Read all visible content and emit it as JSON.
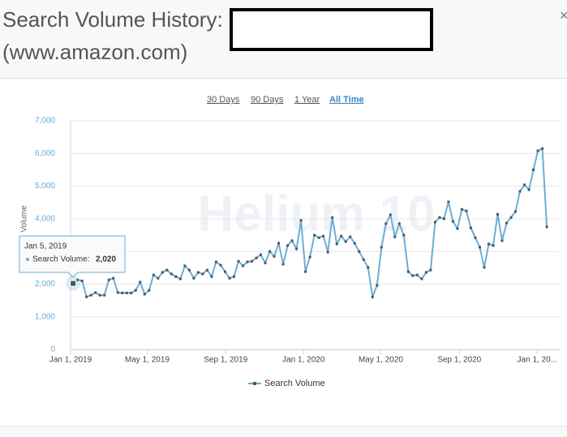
{
  "header": {
    "title": "Search Volume History:",
    "subtitle": "(www.amazon.com)"
  },
  "ranges": [
    "30 Days",
    "90 Days",
    "1 Year",
    "All Time"
  ],
  "active_range": 3,
  "chart_data": {
    "type": "line",
    "y_label": "Volume",
    "watermark": "Helium 10",
    "x": [
      "2019-01-05",
      "2019-01-12",
      "2019-01-19",
      "2019-01-26",
      "2019-02-02",
      "2019-02-09",
      "2019-02-16",
      "2019-02-23",
      "2019-03-02",
      "2019-03-09",
      "2019-03-16",
      "2019-03-23",
      "2019-03-30",
      "2019-04-06",
      "2019-04-13",
      "2019-04-20",
      "2019-04-27",
      "2019-05-04",
      "2019-05-11",
      "2019-05-18",
      "2019-05-25",
      "2019-06-01",
      "2019-06-08",
      "2019-06-15",
      "2019-06-22",
      "2019-06-29",
      "2019-07-06",
      "2019-07-13",
      "2019-07-20",
      "2019-07-27",
      "2019-08-03",
      "2019-08-10",
      "2019-08-17",
      "2019-08-24",
      "2019-08-31",
      "2019-09-07",
      "2019-09-14",
      "2019-09-21",
      "2019-09-28",
      "2019-10-05",
      "2019-10-12",
      "2019-10-19",
      "2019-10-26",
      "2019-11-02",
      "2019-11-09",
      "2019-11-16",
      "2019-11-23",
      "2019-11-30",
      "2019-12-07",
      "2019-12-14",
      "2019-12-21",
      "2019-12-28",
      "2020-01-04",
      "2020-01-11",
      "2020-01-18",
      "2020-01-25",
      "2020-02-01",
      "2020-02-08",
      "2020-02-15",
      "2020-02-22",
      "2020-02-29",
      "2020-03-07",
      "2020-03-14",
      "2020-03-21",
      "2020-03-28",
      "2020-04-04",
      "2020-04-11",
      "2020-04-18",
      "2020-04-25",
      "2020-05-02",
      "2020-05-09",
      "2020-05-16",
      "2020-05-23",
      "2020-05-30",
      "2020-06-06",
      "2020-06-13",
      "2020-06-20",
      "2020-06-27",
      "2020-07-04",
      "2020-07-11",
      "2020-07-18",
      "2020-07-25",
      "2020-08-01",
      "2020-08-08",
      "2020-08-15",
      "2020-08-22",
      "2020-08-29",
      "2020-09-05",
      "2020-09-12",
      "2020-09-19",
      "2020-09-26",
      "2020-10-03",
      "2020-10-10",
      "2020-10-17",
      "2020-10-24",
      "2020-10-31",
      "2020-11-07",
      "2020-11-14",
      "2020-11-21",
      "2020-11-28",
      "2020-12-05",
      "2020-12-12",
      "2020-12-19",
      "2020-12-26",
      "2021-01-02",
      "2021-01-09",
      "2021-01-16"
    ],
    "series": [
      {
        "name": "Search Volume",
        "color": "#6aaed6",
        "values": [
          2020,
          2130,
          2100,
          1610,
          1660,
          1740,
          1660,
          1660,
          2130,
          2180,
          1740,
          1730,
          1730,
          1730,
          1810,
          2060,
          1690,
          1810,
          2280,
          2180,
          2360,
          2430,
          2310,
          2230,
          2160,
          2560,
          2430,
          2180,
          2360,
          2310,
          2430,
          2230,
          2680,
          2580,
          2380,
          2180,
          2230,
          2700,
          2560,
          2680,
          2700,
          2800,
          2900,
          2650,
          3000,
          2850,
          3250,
          2610,
          3180,
          3330,
          3080,
          3950,
          2380,
          2830,
          3500,
          3420,
          3470,
          2980,
          4040,
          3230,
          3470,
          3300,
          3450,
          3250,
          3000,
          2750,
          2510,
          1610,
          1960,
          3130,
          3850,
          4120,
          3450,
          3850,
          3500,
          2380,
          2260,
          2280,
          2160,
          2360,
          2430,
          3900,
          4040,
          4000,
          4520,
          3920,
          3700,
          4290,
          4240,
          3720,
          3420,
          3130,
          2510,
          3230,
          3180,
          4140,
          3330,
          3870,
          4040,
          4220,
          4840,
          5040,
          4890,
          5500,
          6080,
          6150,
          3750
        ]
      }
    ],
    "xlim": [
      "2019-01-01",
      "2021-01-31"
    ],
    "xticks": [
      {
        "value": "2019-01-01",
        "label": "Jan 1, 2019"
      },
      {
        "value": "2019-05-01",
        "label": "May 1, 2019"
      },
      {
        "value": "2019-09-01",
        "label": "Sep 1, 2019"
      },
      {
        "value": "2020-01-01",
        "label": "Jan 1, 2020"
      },
      {
        "value": "2020-05-01",
        "label": "May 1, 2020"
      },
      {
        "value": "2020-09-01",
        "label": "Sep 1, 2020"
      },
      {
        "value": "2021-01-01",
        "label": "Jan 1, 20..."
      }
    ],
    "ylim": [
      0,
      7000
    ],
    "yticks": [
      0,
      {
        "value": 1000,
        "label": "1,000"
      },
      {
        "value": 2000,
        "label": "2,000"
      },
      {
        "value": 3000,
        "label": "3,000"
      },
      {
        "value": 4000,
        "label": "4,000"
      },
      {
        "value": 5000,
        "label": "5,000"
      },
      {
        "value": 6000,
        "label": "6,000"
      },
      {
        "value": 7000,
        "label": "7,000"
      }
    ],
    "grid": true,
    "legend": "bottom",
    "tooltip": {
      "date": "Jan 5, 2019",
      "label": "Search Volume:",
      "value": "2,020"
    }
  }
}
